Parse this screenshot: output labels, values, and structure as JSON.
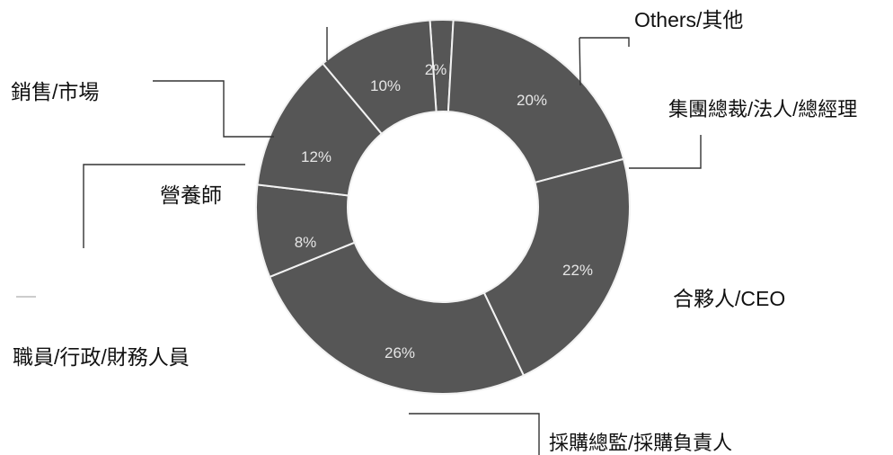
{
  "chart_data": {
    "type": "pie",
    "subtype": "donut",
    "legend": "none",
    "grid": false,
    "slice_color": "#565656",
    "separator_color": "#f2f2f2",
    "leader_line_color": "#333333",
    "slices": [
      {
        "label": "Others/其他",
        "value": 2,
        "value_label": "2%"
      },
      {
        "label": "集團總裁/法人/總經理",
        "value": 20,
        "value_label": "20%"
      },
      {
        "label": "合夥人/CEO",
        "value": 22,
        "value_label": "22%"
      },
      {
        "label": "採購總監/採購負責人",
        "value": 26,
        "value_label": "26%"
      },
      {
        "label": "職員/行政/財務人員",
        "value": 8,
        "value_label": "8%"
      },
      {
        "label": "營養師",
        "value": 12,
        "value_label": "12%"
      },
      {
        "label": "銷售/市場",
        "value": 10,
        "value_label": "10%"
      }
    ]
  }
}
